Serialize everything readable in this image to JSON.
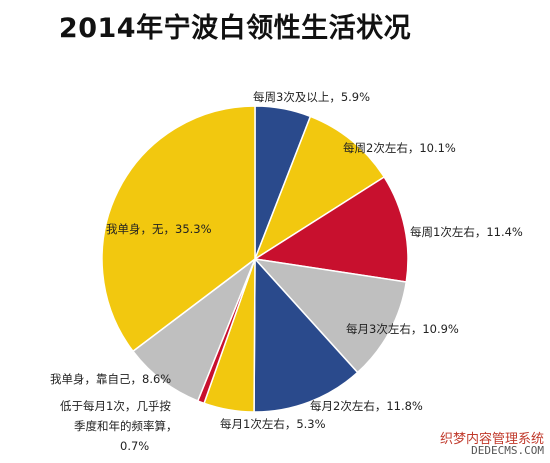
{
  "chart_data": {
    "type": "pie",
    "title": "2014年宁波白领性生活状况",
    "slices": [
      {
        "label": "每周3次及以上",
        "display": "每周3次及以上，5.9%",
        "value": 5.9,
        "color": "#2a4a8c"
      },
      {
        "label": "每周2次左右",
        "display": "每周2次左右，10.1%",
        "value": 10.1,
        "color": "#f2c80f"
      },
      {
        "label": "每周1次左右",
        "display": "每周1次左右，11.4%",
        "value": 11.4,
        "color": "#c8102e"
      },
      {
        "label": "每月3次左右",
        "display": "每月3次左右，10.9%",
        "value": 10.9,
        "color": "#bfbfbf"
      },
      {
        "label": "每月2次左右",
        "display": "每月2次左右，11.8%",
        "value": 11.8,
        "color": "#2a4a8c"
      },
      {
        "label": "每月1次左右",
        "display": "每月1次左右，5.3%",
        "value": 5.3,
        "color": "#f2c80f"
      },
      {
        "label": "低于每月1次，几乎按季度和年的频率算",
        "display_lines": [
          "低于每月1次，几乎按",
          "季度和年的频率算，",
          "0.7%"
        ],
        "value": 0.7,
        "color": "#c8102e"
      },
      {
        "label": "我单身，靠自己",
        "display": "我单身，靠自己，8.6%",
        "value": 8.6,
        "color": "#bfbfbf"
      },
      {
        "label": "我单身，无",
        "display": "我单身，无，35.3%",
        "value": 35.3,
        "color": "#f2c80f"
      }
    ]
  },
  "watermark": {
    "line1": "织梦内容管理系统",
    "line2": "DEDECMS.COM"
  }
}
